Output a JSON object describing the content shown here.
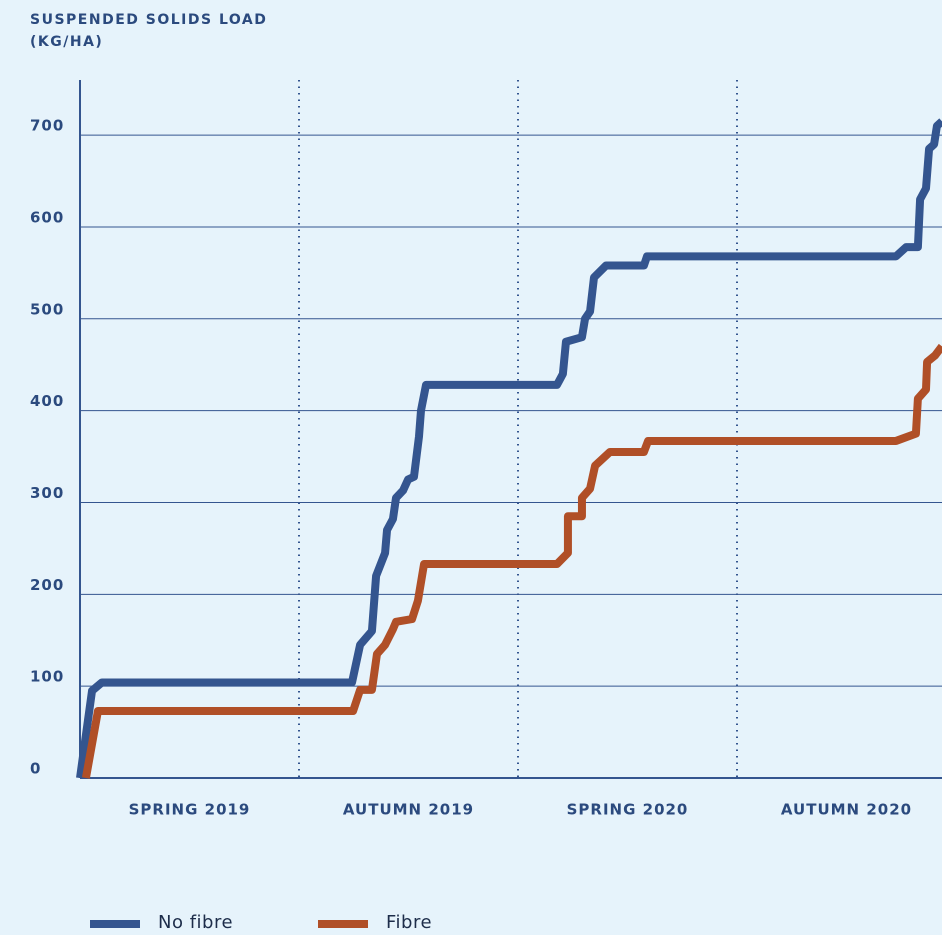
{
  "chart_data": {
    "type": "line",
    "title": [
      "SUSPENDED SOLIDS LOAD",
      "(KG/HA)"
    ],
    "categories": [
      "SPRING 2019",
      "AUTUMN 2019",
      "SPRING 2020",
      "AUTUMN 2020"
    ],
    "xlim": [
      0,
      4
    ],
    "xticks": [
      1,
      2,
      3
    ],
    "ylim": [
      0,
      760
    ],
    "yticks": [
      0,
      100,
      200,
      300,
      400,
      500,
      600,
      700
    ],
    "grid": true,
    "legend": "bottom",
    "series": [
      {
        "name": "No fibre",
        "color": "#34558f",
        "x": [
          0,
          0.055,
          0.1,
          1.242,
          1.279,
          1.333,
          1.352,
          1.393,
          1.402,
          1.429,
          1.443,
          1.475,
          1.498,
          1.525,
          1.548,
          1.557,
          1.58,
          2.178,
          2.205,
          2.219,
          2.292,
          2.306,
          2.329,
          2.347,
          2.402,
          2.575,
          2.589,
          3.726,
          3.772,
          3.826,
          3.836,
          3.863,
          3.877,
          3.9,
          3.913,
          3.936
        ],
        "values": [
          0,
          95,
          104,
          104,
          145,
          160,
          220,
          245,
          270,
          282,
          305,
          313,
          325,
          328,
          372,
          400,
          428,
          428,
          440,
          475,
          480,
          500,
          508,
          545,
          558,
          558,
          568,
          568,
          578,
          578,
          630,
          642,
          685,
          690,
          710,
          715
        ]
      },
      {
        "name": "Fibre",
        "color": "#b04f27",
        "x": [
          0.027,
          0.082,
          1.247,
          1.279,
          1.333,
          1.356,
          1.393,
          1.429,
          1.443,
          1.516,
          1.543,
          1.571,
          2.178,
          2.228,
          2.228,
          2.292,
          2.292,
          2.329,
          2.352,
          2.42,
          2.575,
          2.594,
          3.726,
          3.817,
          3.826,
          3.863,
          3.868,
          3.904,
          3.936
        ],
        "values": [
          0,
          73,
          73,
          96,
          96,
          135,
          145,
          162,
          170,
          173,
          193,
          233,
          233,
          245,
          285,
          285,
          305,
          315,
          340,
          355,
          355,
          367,
          367,
          375,
          413,
          423,
          453,
          460,
          470
        ]
      }
    ]
  }
}
